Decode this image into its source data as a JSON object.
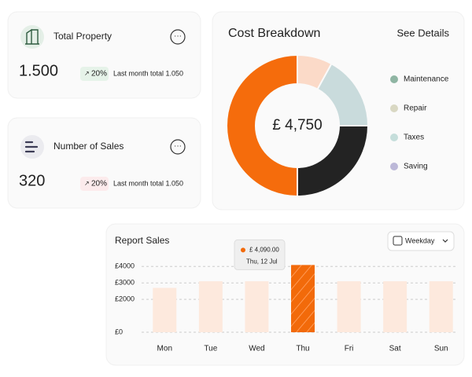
{
  "cards": [
    {
      "title": "Total Property",
      "value": "1.500",
      "change": "20%",
      "note": "Last month total 1.050"
    },
    {
      "title": "Number of Sales",
      "value": "320",
      "change": "20%",
      "note": "Last month total 1.050"
    }
  ],
  "chart_data": [
    {
      "type": "pie",
      "title": "Cost Breakdown",
      "link": "See Details",
      "center_label": "£ 4,750",
      "categories": [
        "Maintenance",
        "Repair",
        "Taxes",
        "Saving"
      ],
      "values": [
        50,
        25,
        17,
        8
      ],
      "colors": [
        "#f56c0c",
        "#232323",
        "#c9dbdc",
        "#fbdac8"
      ],
      "legend_colors": [
        "#8fb5a3",
        "#d9d8c3",
        "#c5dedb",
        "#bcb8d8"
      ]
    },
    {
      "type": "bar",
      "title": "Report Sales",
      "filter": "Weekday",
      "categories": [
        "Mon",
        "Tue",
        "Wed",
        "Thu",
        "Fri",
        "Sat",
        "Sun"
      ],
      "values": [
        2700,
        3100,
        3100,
        4090,
        3100,
        3100,
        3100
      ],
      "value_labels": [
        null,
        null,
        null,
        "£ 4,090.00",
        null,
        null,
        null
      ],
      "tooltip_date": "Thu, 12 Jul",
      "color": "#fde9dd",
      "highlight_color": "#f26a0a",
      "ylim": [
        0,
        4300
      ],
      "yticks": [
        {
          "value": 0,
          "label": "£0"
        },
        {
          "value": 2000,
          "label": "£2000"
        },
        {
          "value": 3000,
          "label": "£3000"
        },
        {
          "value": 4000,
          "label": "£4000"
        }
      ],
      "grid": true
    }
  ]
}
